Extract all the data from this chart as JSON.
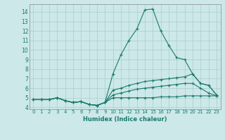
{
  "xlabel": "Humidex (Indice chaleur)",
  "bg_color": "#cce8e8",
  "line_color": "#1a7a6e",
  "xlim": [
    -0.5,
    23.5
  ],
  "ylim": [
    3.8,
    14.8
  ],
  "xticks": [
    0,
    1,
    2,
    3,
    4,
    5,
    6,
    7,
    8,
    9,
    10,
    11,
    12,
    13,
    14,
    15,
    16,
    17,
    18,
    19,
    20,
    21,
    22,
    23
  ],
  "yticks": [
    4,
    5,
    6,
    7,
    8,
    9,
    10,
    11,
    12,
    13,
    14
  ],
  "grid_color": "#aacccc",
  "lines": [
    {
      "x": [
        0,
        1,
        2,
        3,
        4,
        5,
        6,
        7,
        8,
        9,
        10,
        11,
        12,
        13,
        14,
        15,
        16,
        17,
        18,
        19,
        20,
        21,
        22,
        23
      ],
      "y": [
        4.8,
        4.8,
        4.8,
        5.0,
        4.7,
        4.5,
        4.6,
        4.3,
        4.2,
        4.5,
        7.5,
        9.5,
        11.0,
        12.2,
        14.2,
        14.3,
        12.0,
        10.5,
        9.2,
        9.0,
        7.5,
        6.5,
        6.3,
        5.3
      ]
    },
    {
      "x": [
        0,
        1,
        2,
        3,
        4,
        5,
        6,
        7,
        8,
        9,
        10,
        11,
        12,
        13,
        14,
        15,
        16,
        17,
        18,
        19,
        20,
        21,
        22,
        23
      ],
      "y": [
        4.8,
        4.8,
        4.8,
        5.0,
        4.7,
        4.5,
        4.6,
        4.3,
        4.2,
        4.5,
        5.8,
        6.0,
        6.3,
        6.5,
        6.7,
        6.8,
        6.9,
        7.0,
        7.1,
        7.2,
        7.5,
        6.5,
        6.3,
        5.3
      ]
    },
    {
      "x": [
        0,
        1,
        2,
        3,
        4,
        5,
        6,
        7,
        8,
        9,
        10,
        11,
        12,
        13,
        14,
        15,
        16,
        17,
        18,
        19,
        20,
        21,
        22,
        23
      ],
      "y": [
        4.8,
        4.8,
        4.8,
        5.0,
        4.7,
        4.5,
        4.6,
        4.3,
        4.2,
        4.5,
        5.3,
        5.5,
        5.7,
        5.9,
        6.0,
        6.1,
        6.2,
        6.3,
        6.4,
        6.5,
        6.5,
        6.0,
        5.5,
        5.2
      ]
    },
    {
      "x": [
        0,
        1,
        2,
        3,
        4,
        5,
        6,
        7,
        8,
        9,
        10,
        11,
        12,
        13,
        14,
        15,
        16,
        17,
        18,
        19,
        20,
        21,
        22,
        23
      ],
      "y": [
        4.8,
        4.8,
        4.8,
        5.0,
        4.7,
        4.5,
        4.6,
        4.3,
        4.2,
        4.5,
        5.0,
        5.0,
        5.0,
        5.0,
        5.0,
        5.0,
        5.1,
        5.1,
        5.1,
        5.2,
        5.2,
        5.2,
        5.2,
        5.2
      ]
    }
  ]
}
